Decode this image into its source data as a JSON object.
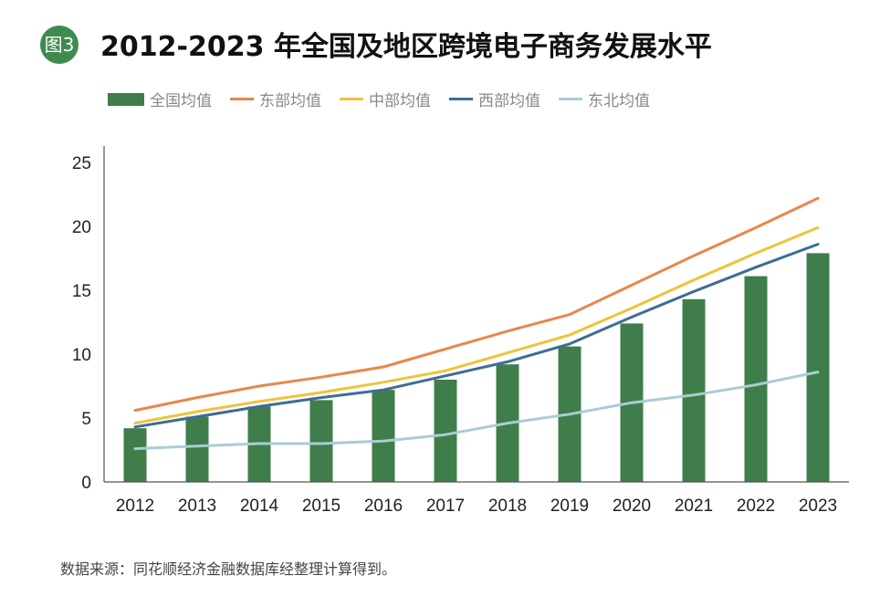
{
  "header": {
    "badge": "图3",
    "title": "2012-2023 年全国及地区跨境电子商务发展水平"
  },
  "source": "数据来源：同花顺经济金融数据库经整理计算得到。",
  "colors": {
    "全国均值": "#3f7d4a",
    "东部均值": "#e8874a",
    "中部均值": "#efc33b",
    "西部均值": "#3e6c97",
    "东北均值": "#a9cdd4"
  },
  "chart_data": {
    "type": "bar",
    "title": "2012-2023 年全国及地区跨境电子商务发展水平",
    "categories": [
      "2012",
      "2013",
      "2014",
      "2015",
      "2016",
      "2017",
      "2018",
      "2019",
      "2020",
      "2021",
      "2022",
      "2023"
    ],
    "ylim": [
      0,
      25
    ],
    "yticks": [
      0,
      5,
      10,
      15,
      20,
      25
    ],
    "grid": false,
    "legend": "top-left",
    "series": [
      {
        "name": "全国均值",
        "type": "bar",
        "values": [
          4.2,
          5.1,
          5.9,
          6.4,
          7.2,
          8.0,
          9.2,
          10.6,
          12.4,
          14.3,
          16.1,
          17.9
        ]
      },
      {
        "name": "东部均值",
        "type": "line",
        "values": [
          5.6,
          6.6,
          7.5,
          8.2,
          9.0,
          10.4,
          11.8,
          13.1,
          15.4,
          17.7,
          19.9,
          22.2
        ]
      },
      {
        "name": "中部均值",
        "type": "line",
        "values": [
          4.6,
          5.5,
          6.3,
          7.0,
          7.8,
          8.7,
          10.1,
          11.5,
          13.6,
          15.8,
          17.9,
          19.9
        ]
      },
      {
        "name": "西部均值",
        "type": "line",
        "values": [
          4.3,
          5.1,
          5.9,
          6.6,
          7.2,
          8.3,
          9.4,
          10.8,
          12.9,
          14.9,
          16.8,
          18.6
        ]
      },
      {
        "name": "东北均值",
        "type": "line",
        "values": [
          2.6,
          2.8,
          3.0,
          3.0,
          3.2,
          3.7,
          4.6,
          5.3,
          6.2,
          6.8,
          7.6,
          8.6
        ]
      }
    ]
  }
}
